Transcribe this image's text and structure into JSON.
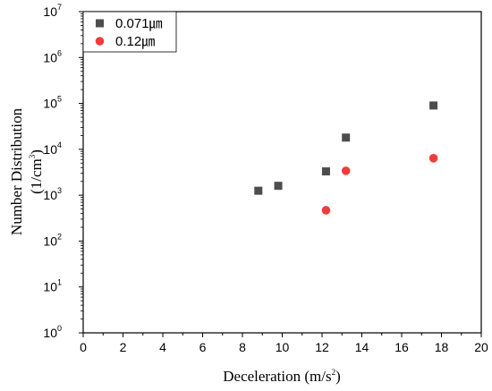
{
  "chart_data": {
    "type": "scatter",
    "xlabel": "Deceleration (m/s",
    "xlabel_sup": "2",
    "xlabel_suffix": ")",
    "ylabel_line1": "Number Distribution",
    "ylabel_line2": "(1/cm",
    "ylabel_line2_sup": "3",
    "ylabel_line2_suffix": ")",
    "xlim": [
      0,
      20
    ],
    "ylim": [
      1,
      10000000
    ],
    "yscale": "log",
    "xticks": [
      0,
      2,
      4,
      6,
      8,
      10,
      12,
      14,
      16,
      18,
      20
    ],
    "yticks": [
      {
        "value": 1,
        "base": "10",
        "exp": "0"
      },
      {
        "value": 10,
        "base": "10",
        "exp": "1"
      },
      {
        "value": 100,
        "base": "10",
        "exp": "2"
      },
      {
        "value": 1000,
        "base": "10",
        "exp": "3"
      },
      {
        "value": 10000,
        "base": "10",
        "exp": "4"
      },
      {
        "value": 100000,
        "base": "10",
        "exp": "5"
      },
      {
        "value": 1000000,
        "base": "10",
        "exp": "6"
      },
      {
        "value": 10000000,
        "base": "10",
        "exp": "7"
      }
    ],
    "legend_position": "top-left",
    "grid": false,
    "series": [
      {
        "name": "0.071㎛",
        "marker": "square",
        "color": "#4d4d4d",
        "x": [
          8.8,
          9.8,
          12.2,
          13.2,
          17.6
        ],
        "y": [
          1250,
          1600,
          3300,
          18000,
          90000
        ]
      },
      {
        "name": "0.12㎛",
        "marker": "circle",
        "color": "#f03c3c",
        "x": [
          12.2,
          13.2,
          17.6
        ],
        "y": [
          470,
          3400,
          6400
        ]
      }
    ]
  }
}
